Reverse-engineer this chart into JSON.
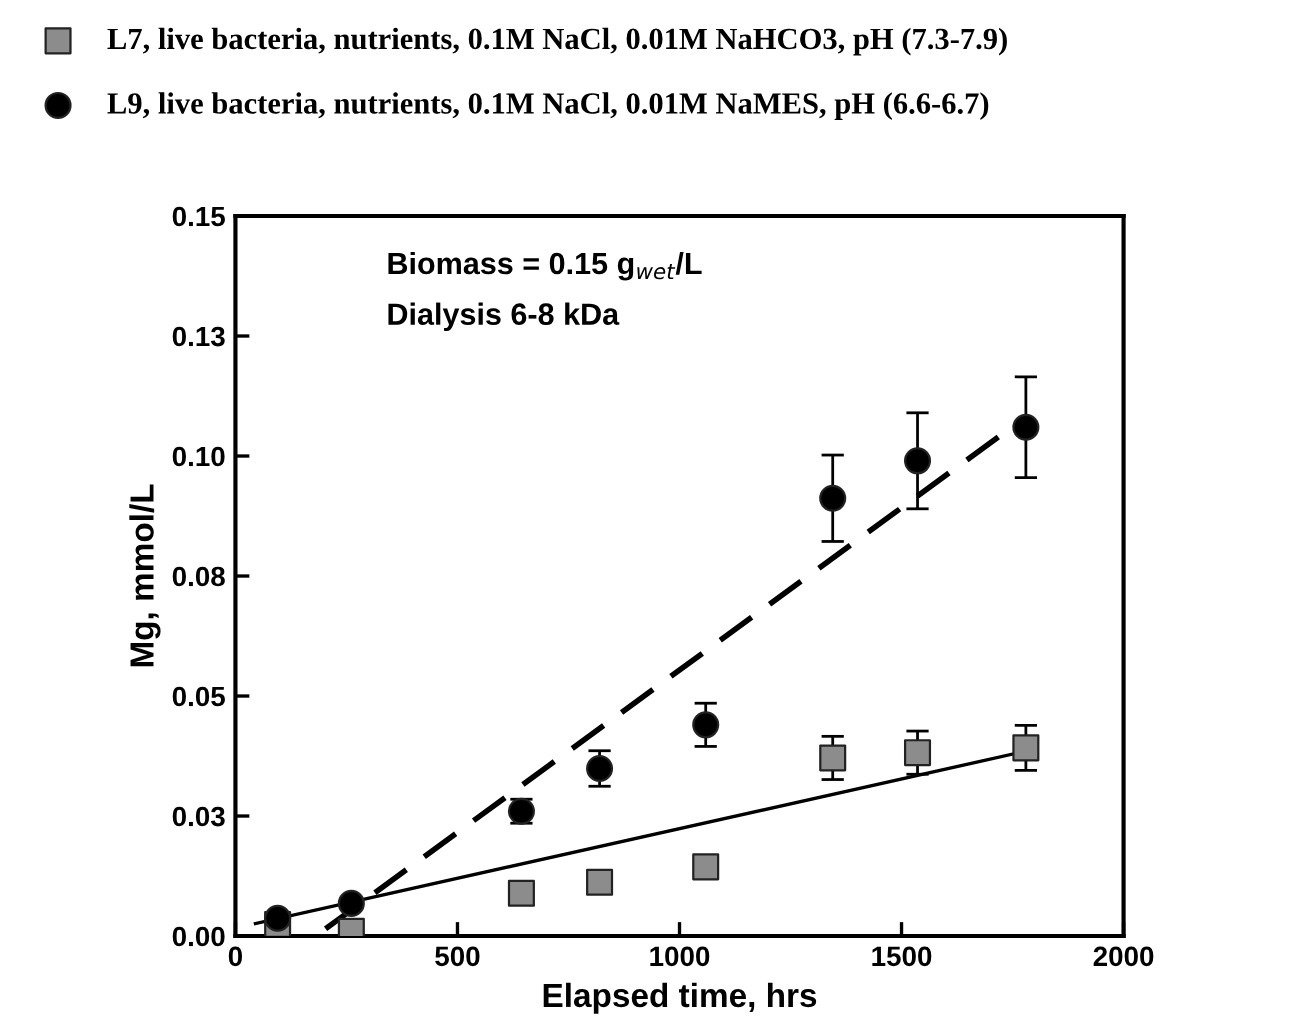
{
  "chart_data": {
    "type": "scatter",
    "xlabel": "Elapsed time, hrs",
    "ylabel": "Mg, mmol/L",
    "xlim": [
      0,
      2000
    ],
    "xticks": [
      0,
      500,
      1000,
      1500,
      2000
    ],
    "ylim": [
      0,
      0.15
    ],
    "yticks": [
      {
        "value": 0,
        "label": "0.00"
      },
      {
        "value": 0.025,
        "label": "0.03"
      },
      {
        "value": 0.05,
        "label": "0.05"
      },
      {
        "value": 0.075,
        "label": "0.08"
      },
      {
        "value": 0.1,
        "label": "0.10"
      },
      {
        "value": 0.125,
        "label": "0.13"
      },
      {
        "value": 0.15,
        "label": "0.15"
      }
    ],
    "grid": false,
    "legend": "top left",
    "annotations": [
      "Biomass = 0.15 g$_{wet}$/L",
      "Dialysis 6-8 kDa"
    ],
    "series": [
      {
        "name": "L7, live bacteria, nutrients, 0.1M NaCl, 0.01M NaHCO3, pH (7.3-7.9)",
        "marker": "square",
        "color": "#8c8c8c",
        "x": [
          95,
          261,
          644,
          820,
          1059,
          1345,
          1536,
          1780
        ],
        "values": [
          0.0024,
          0.001,
          0.0089,
          0.0112,
          0.0144,
          0.0371,
          0.0382,
          0.0392
        ],
        "errors": [
          null,
          null,
          null,
          null,
          null,
          0.0045,
          0.0045,
          0.0047
        ]
      },
      {
        "name": "L9, live bacteria, nutrients, 0.1M NaCl, 0.01M NaMES, pH (6.6-6.7)",
        "marker": "circle",
        "color": "#000000",
        "x": [
          95,
          261,
          644,
          820,
          1059,
          1345,
          1536,
          1780
        ],
        "values": [
          0.0037,
          0.0068,
          0.026,
          0.0349,
          0.044,
          0.0912,
          0.099,
          0.106
        ],
        "errors": [
          null,
          null,
          0.0025,
          0.0037,
          0.0045,
          0.009,
          0.01,
          0.0105
        ]
      },
      {
        "type": "line",
        "line_style": "solid",
        "marker": "none",
        "color": "#000000",
        "x": [
          45,
          1784
        ],
        "values": [
          0.0026,
          0.0386
        ]
      },
      {
        "type": "line",
        "line_style": "dashed",
        "marker": "none",
        "color": "#000000",
        "x": [
          203,
          1748
        ],
        "values": [
          0.0015,
          0.106
        ]
      }
    ]
  }
}
